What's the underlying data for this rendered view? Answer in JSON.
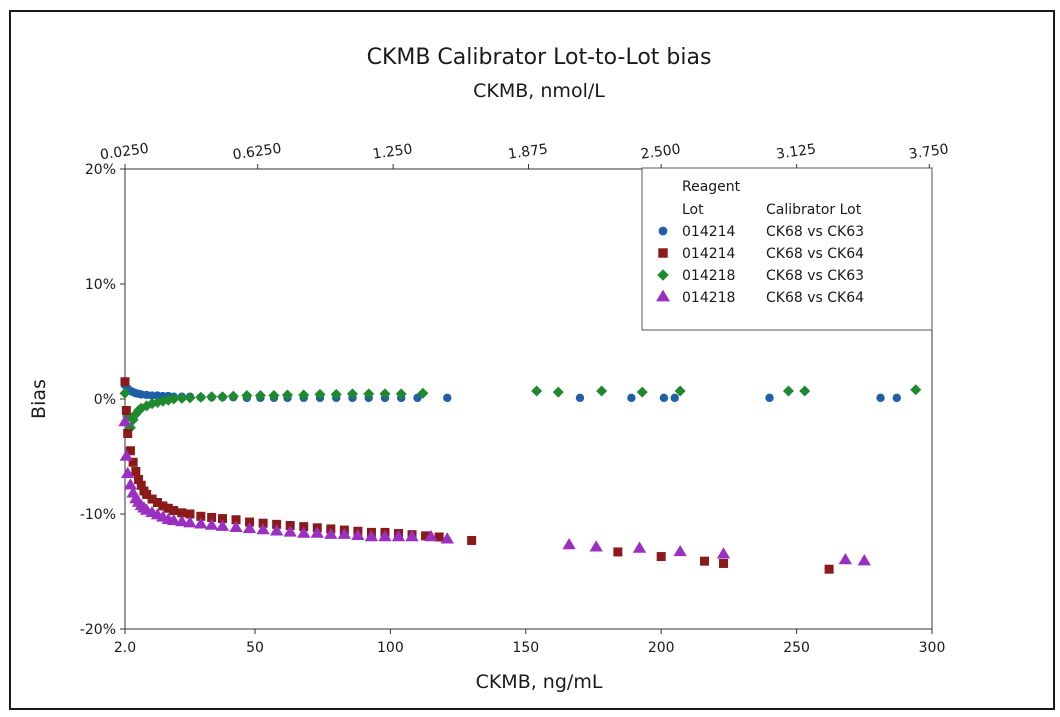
{
  "chart_data": {
    "type": "scatter",
    "title": "CKMB Calibrator Lot-to-Lot bias",
    "subtitle": "CKMB, nmol/L",
    "xlabel": "CKMB, ng/mL",
    "ylabel": "Bias",
    "xlim": [
      2.0,
      300
    ],
    "ylim": [
      -20,
      20
    ],
    "x_ticks": [
      2.0,
      50,
      100,
      150,
      200,
      250,
      300
    ],
    "x_tick_labels": [
      "2.0",
      "50",
      "100",
      "150",
      "200",
      "250",
      "300"
    ],
    "y_ticks": [
      -20,
      -10,
      0,
      10,
      20
    ],
    "y_tick_labels": [
      "-20%",
      "-10%",
      "0%",
      "10%",
      "20%"
    ],
    "top_axis_ticks": [
      {
        "x": 2,
        "label": "0.0250"
      },
      {
        "x": 51,
        "label": "0.6250"
      },
      {
        "x": 101,
        "label": "1.250"
      },
      {
        "x": 151,
        "label": "1.875"
      },
      {
        "x": 200,
        "label": "2.500"
      },
      {
        "x": 250,
        "label": "3.125"
      },
      {
        "x": 299,
        "label": "3.750"
      }
    ],
    "legend": {
      "position": "top-right",
      "header_col1": [
        "Reagent",
        "Lot"
      ],
      "header_col2": "Calibrator Lot"
    },
    "series": [
      {
        "lot": "014214",
        "cal": "CK68 vs CK63",
        "marker": "circle",
        "color": "#1f5fa8",
        "points": [
          [
            2,
            1.2
          ],
          [
            3,
            0.9
          ],
          [
            4,
            0.7
          ],
          [
            5,
            0.6
          ],
          [
            6,
            0.5
          ],
          [
            7,
            0.45
          ],
          [
            8,
            0.4
          ],
          [
            10,
            0.35
          ],
          [
            12,
            0.3
          ],
          [
            14,
            0.3
          ],
          [
            16,
            0.25
          ],
          [
            18,
            0.25
          ],
          [
            20,
            0.2
          ],
          [
            23,
            0.2
          ],
          [
            26,
            0.2
          ],
          [
            30,
            0.15
          ],
          [
            34,
            0.15
          ],
          [
            38,
            0.15
          ],
          [
            42,
            0.15
          ],
          [
            47,
            0.1
          ],
          [
            52,
            0.1
          ],
          [
            57,
            0.1
          ],
          [
            62,
            0.1
          ],
          [
            68,
            0.1
          ],
          [
            74,
            0.1
          ],
          [
            80,
            0.1
          ],
          [
            86,
            0.1
          ],
          [
            92,
            0.1
          ],
          [
            98,
            0.1
          ],
          [
            104,
            0.1
          ],
          [
            110,
            0.1
          ],
          [
            121,
            0.1
          ],
          [
            170,
            0.1
          ],
          [
            189,
            0.1
          ],
          [
            201,
            0.1
          ],
          [
            205,
            0.1
          ],
          [
            240,
            0.1
          ],
          [
            281,
            0.1
          ],
          [
            287,
            0.1
          ]
        ]
      },
      {
        "lot": "014214",
        "cal": "CK68 vs CK64",
        "marker": "square",
        "color": "#8b1a1a",
        "points": [
          [
            2,
            1.5
          ],
          [
            2.5,
            -1
          ],
          [
            3,
            -3
          ],
          [
            4,
            -4.5
          ],
          [
            5,
            -5.5
          ],
          [
            6,
            -6.3
          ],
          [
            7,
            -7
          ],
          [
            8,
            -7.5
          ],
          [
            9,
            -8
          ],
          [
            10,
            -8.3
          ],
          [
            12,
            -8.7
          ],
          [
            14,
            -9
          ],
          [
            16,
            -9.3
          ],
          [
            18,
            -9.5
          ],
          [
            20,
            -9.7
          ],
          [
            23,
            -9.9
          ],
          [
            26,
            -10
          ],
          [
            30,
            -10.2
          ],
          [
            34,
            -10.3
          ],
          [
            38,
            -10.4
          ],
          [
            43,
            -10.5
          ],
          [
            48,
            -10.7
          ],
          [
            53,
            -10.8
          ],
          [
            58,
            -10.9
          ],
          [
            63,
            -11
          ],
          [
            68,
            -11.1
          ],
          [
            73,
            -11.2
          ],
          [
            78,
            -11.3
          ],
          [
            83,
            -11.4
          ],
          [
            88,
            -11.5
          ],
          [
            93,
            -11.6
          ],
          [
            98,
            -11.6
          ],
          [
            103,
            -11.7
          ],
          [
            108,
            -11.8
          ],
          [
            113,
            -11.9
          ],
          [
            118,
            -12
          ],
          [
            130,
            -12.3
          ],
          [
            184,
            -13.3
          ],
          [
            200,
            -13.7
          ],
          [
            216,
            -14.1
          ],
          [
            223,
            -14.3
          ],
          [
            262,
            -14.8
          ]
        ]
      },
      {
        "lot": "014218",
        "cal": "CK68 vs CK63",
        "marker": "diamond",
        "color": "#1e8a2e",
        "points": [
          [
            2,
            0.5
          ],
          [
            3,
            -1.5
          ],
          [
            4,
            -2.5
          ],
          [
            5,
            -1.8
          ],
          [
            6,
            -1.3
          ],
          [
            7,
            -1
          ],
          [
            8,
            -0.8
          ],
          [
            10,
            -0.6
          ],
          [
            12,
            -0.4
          ],
          [
            14,
            -0.3
          ],
          [
            16,
            -0.2
          ],
          [
            18,
            -0.1
          ],
          [
            20,
            0
          ],
          [
            23,
            0.05
          ],
          [
            26,
            0.1
          ],
          [
            30,
            0.15
          ],
          [
            34,
            0.2
          ],
          [
            38,
            0.2
          ],
          [
            42,
            0.25
          ],
          [
            47,
            0.3
          ],
          [
            52,
            0.3
          ],
          [
            57,
            0.3
          ],
          [
            62,
            0.35
          ],
          [
            68,
            0.35
          ],
          [
            74,
            0.4
          ],
          [
            80,
            0.4
          ],
          [
            86,
            0.45
          ],
          [
            92,
            0.45
          ],
          [
            98,
            0.45
          ],
          [
            104,
            0.45
          ],
          [
            112,
            0.5
          ],
          [
            154,
            0.7
          ],
          [
            162,
            0.6
          ],
          [
            178,
            0.7
          ],
          [
            193,
            0.6
          ],
          [
            207,
            0.7
          ],
          [
            247,
            0.7
          ],
          [
            253,
            0.7
          ],
          [
            294,
            0.8
          ]
        ]
      },
      {
        "lot": "014218",
        "cal": "CK68 vs CK64",
        "marker": "triangle",
        "color": "#9b2fc2",
        "points": [
          [
            2,
            -2
          ],
          [
            2.5,
            -5
          ],
          [
            3,
            -6.5
          ],
          [
            4,
            -7.5
          ],
          [
            5,
            -8.2
          ],
          [
            6,
            -8.7
          ],
          [
            7,
            -9
          ],
          [
            8,
            -9.3
          ],
          [
            9,
            -9.5
          ],
          [
            10,
            -9.7
          ],
          [
            12,
            -9.9
          ],
          [
            14,
            -10.1
          ],
          [
            16,
            -10.3
          ],
          [
            18,
            -10.5
          ],
          [
            20,
            -10.6
          ],
          [
            23,
            -10.7
          ],
          [
            26,
            -10.8
          ],
          [
            30,
            -10.9
          ],
          [
            34,
            -11
          ],
          [
            38,
            -11.1
          ],
          [
            43,
            -11.2
          ],
          [
            48,
            -11.3
          ],
          [
            53,
            -11.4
          ],
          [
            58,
            -11.5
          ],
          [
            63,
            -11.6
          ],
          [
            68,
            -11.7
          ],
          [
            73,
            -11.7
          ],
          [
            78,
            -11.8
          ],
          [
            83,
            -11.8
          ],
          [
            88,
            -11.9
          ],
          [
            93,
            -12
          ],
          [
            98,
            -12
          ],
          [
            103,
            -12
          ],
          [
            108,
            -12
          ],
          [
            115,
            -12
          ],
          [
            121,
            -12.2
          ],
          [
            166,
            -12.7
          ],
          [
            176,
            -12.9
          ],
          [
            192,
            -13
          ],
          [
            207,
            -13.3
          ],
          [
            223,
            -13.5
          ],
          [
            268,
            -14
          ],
          [
            275,
            -14.1
          ]
        ]
      }
    ]
  }
}
